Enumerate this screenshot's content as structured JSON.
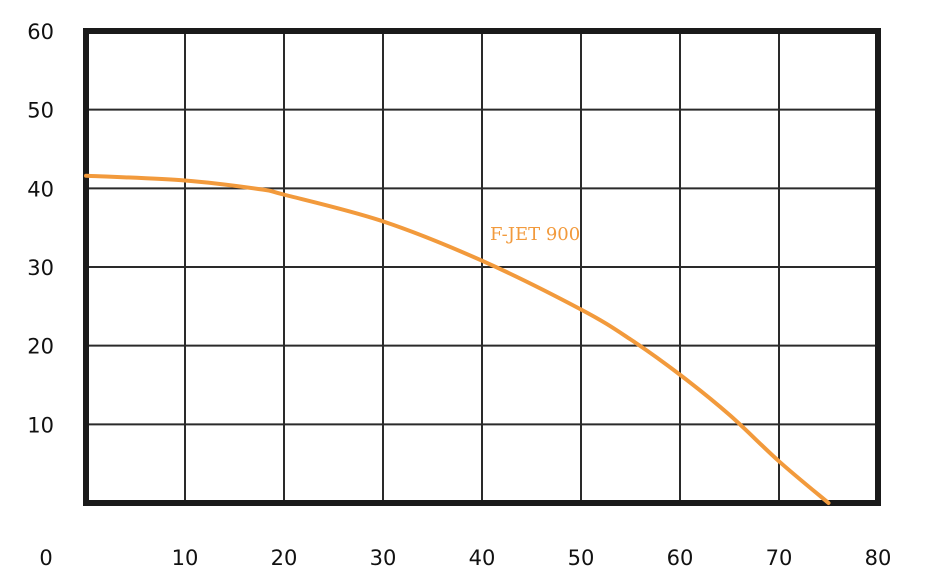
{
  "chart_data": {
    "type": "line",
    "title": "",
    "xlabel": "",
    "ylabel": "",
    "xlim": [
      0,
      80
    ],
    "ylim": [
      0,
      60
    ],
    "x_ticks": [
      0,
      10,
      20,
      30,
      40,
      50,
      60,
      70,
      80
    ],
    "y_ticks": [
      10,
      20,
      30,
      40,
      50,
      60
    ],
    "grid": true,
    "series": [
      {
        "name": "F-JET 900",
        "color": "#f29a3c",
        "x": [
          0,
          10,
          17.5,
          20,
          30,
          40,
          50,
          55,
          60,
          65,
          70,
          75
        ],
        "y": [
          41.6,
          41.0,
          39.9,
          39.2,
          35.8,
          30.8,
          24.6,
          20.8,
          16.3,
          11.2,
          5.3,
          0
        ]
      }
    ]
  }
}
